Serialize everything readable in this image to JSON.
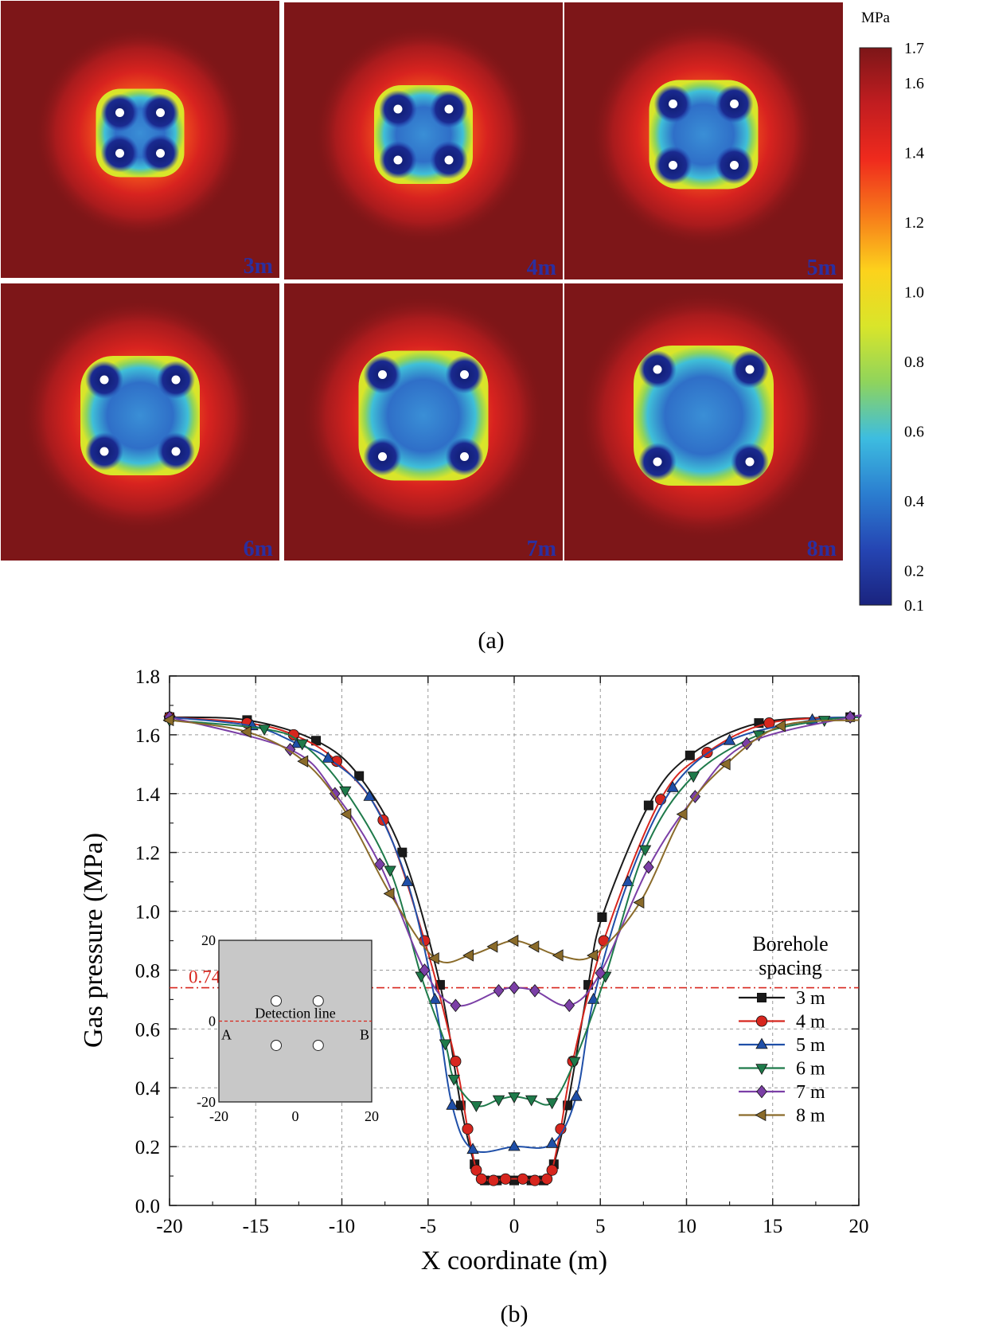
{
  "panel_a": {
    "label": "(a)",
    "colorbar": {
      "unit": "MPa",
      "ticks": [
        "1.7",
        "1.6",
        "1.4",
        "1.2",
        "1.0",
        "0.8",
        "0.6",
        "0.4",
        "0.2",
        "0.1"
      ],
      "stops": [
        "#7d1618",
        "#c11d20",
        "#ef2a1d",
        "#f77a1a",
        "#fcd21c",
        "#d9e52a",
        "#8fd45c",
        "#3dbde0",
        "#2b7ed0",
        "#2545b3",
        "#1a237e"
      ]
    },
    "maps": [
      {
        "label": "3m",
        "spacing": 3
      },
      {
        "label": "4m",
        "spacing": 4
      },
      {
        "label": "5m",
        "spacing": 5
      },
      {
        "label": "6m",
        "spacing": 6
      },
      {
        "label": "7m",
        "spacing": 7
      },
      {
        "label": "8m",
        "spacing": 8
      }
    ]
  },
  "panel_b": {
    "label": "(b)",
    "chart_data": {
      "type": "line",
      "xlabel": "X coordinate (m)",
      "ylabel": "Gas pressure (MPa)",
      "xlim": [
        -20,
        20
      ],
      "ylim": [
        0.0,
        1.8
      ],
      "x_ticks": [
        "-20",
        "-15",
        "-10",
        "-5",
        "0",
        "5",
        "10",
        "15",
        "20"
      ],
      "y_ticks": [
        "0.0",
        "0.2",
        "0.4",
        "0.6",
        "0.8",
        "1.0",
        "1.2",
        "1.4",
        "1.6",
        "1.8"
      ],
      "grid": true,
      "threshold": {
        "value": 0.74,
        "label": "0.74MPa",
        "color": "#d7261e"
      },
      "legend": {
        "title_line1": "Borehole",
        "title_line2": "spacing",
        "position": "right"
      },
      "series": [
        {
          "name": "3 m",
          "marker": "square",
          "color": "#1a1a1a",
          "points": [
            [
              -20,
              1.66
            ],
            [
              -15.5,
              1.65
            ],
            [
              -11.5,
              1.58
            ],
            [
              -9,
              1.46
            ],
            [
              -6.5,
              1.2
            ],
            [
              -4.3,
              0.75
            ],
            [
              -3.1,
              0.34
            ],
            [
              -2.3,
              0.14
            ],
            [
              -1.7,
              0.085
            ],
            [
              -1,
              0.085
            ],
            [
              0,
              0.085
            ],
            [
              1,
              0.085
            ],
            [
              1.7,
              0.085
            ],
            [
              2.3,
              0.14
            ],
            [
              3.1,
              0.34
            ],
            [
              4.3,
              0.75
            ],
            [
              5.1,
              0.98
            ],
            [
              7.8,
              1.36
            ],
            [
              10.2,
              1.53
            ],
            [
              14.2,
              1.64
            ],
            [
              19.5,
              1.66
            ],
            [
              20,
              1.66
            ]
          ]
        },
        {
          "name": "4 m",
          "marker": "circle",
          "color": "#d7261e",
          "points": [
            [
              -20,
              1.66
            ],
            [
              -15.5,
              1.64
            ],
            [
              -12.8,
              1.6
            ],
            [
              -10.3,
              1.51
            ],
            [
              -7.6,
              1.31
            ],
            [
              -5.2,
              0.9
            ],
            [
              -3.4,
              0.49
            ],
            [
              -2.7,
              0.26
            ],
            [
              -2.2,
              0.12
            ],
            [
              -1.9,
              0.09
            ],
            [
              -1.2,
              0.085
            ],
            [
              -0.5,
              0.09
            ],
            [
              0.5,
              0.09
            ],
            [
              1.2,
              0.085
            ],
            [
              1.9,
              0.09
            ],
            [
              2.2,
              0.12
            ],
            [
              2.7,
              0.26
            ],
            [
              3.4,
              0.49
            ],
            [
              5.2,
              0.9
            ],
            [
              8.5,
              1.38
            ],
            [
              11.2,
              1.54
            ],
            [
              14.8,
              1.64
            ],
            [
              20,
              1.66
            ]
          ]
        },
        {
          "name": "5 m",
          "marker": "triangle-up",
          "color": "#1f4fa8",
          "points": [
            [
              -20,
              1.66
            ],
            [
              -15.2,
              1.63
            ],
            [
              -12.6,
              1.57
            ],
            [
              -10.8,
              1.52
            ],
            [
              -8.4,
              1.39
            ],
            [
              -6.2,
              1.1
            ],
            [
              -4.6,
              0.7
            ],
            [
              -3.6,
              0.34
            ],
            [
              -2.4,
              0.19
            ],
            [
              0,
              0.2
            ],
            [
              2.2,
              0.21
            ],
            [
              3.6,
              0.37
            ],
            [
              4.6,
              0.7
            ],
            [
              6.6,
              1.1
            ],
            [
              9.2,
              1.42
            ],
            [
              12.5,
              1.58
            ],
            [
              17.3,
              1.65
            ],
            [
              20,
              1.66
            ]
          ]
        },
        {
          "name": "6 m",
          "marker": "triangle-down",
          "color": "#1e7a4a",
          "points": [
            [
              -20,
              1.65
            ],
            [
              -14.5,
              1.62
            ],
            [
              -12.3,
              1.57
            ],
            [
              -9.8,
              1.41
            ],
            [
              -7.2,
              1.14
            ],
            [
              -5.4,
              0.78
            ],
            [
              -4,
              0.55
            ],
            [
              -3.5,
              0.43
            ],
            [
              -2.2,
              0.34
            ],
            [
              -0.9,
              0.36
            ],
            [
              0,
              0.37
            ],
            [
              1,
              0.36
            ],
            [
              2.2,
              0.35
            ],
            [
              3.5,
              0.49
            ],
            [
              5.3,
              0.78
            ],
            [
              7.6,
              1.21
            ],
            [
              10.4,
              1.46
            ],
            [
              14.2,
              1.6
            ],
            [
              18,
              1.65
            ],
            [
              20,
              1.66
            ]
          ]
        },
        {
          "name": "7 m",
          "marker": "diamond",
          "color": "#7b3fa6",
          "points": [
            [
              -20,
              1.66
            ],
            [
              -13,
              1.55
            ],
            [
              -10.4,
              1.4
            ],
            [
              -7.8,
              1.16
            ],
            [
              -5.2,
              0.8
            ],
            [
              -3.4,
              0.68
            ],
            [
              -0.9,
              0.73
            ],
            [
              0,
              0.74
            ],
            [
              1.2,
              0.73
            ],
            [
              3.2,
              0.68
            ],
            [
              5,
              0.79
            ],
            [
              7.8,
              1.15
            ],
            [
              10.5,
              1.39
            ],
            [
              13.5,
              1.57
            ],
            [
              19.5,
              1.66
            ],
            [
              20,
              1.66
            ]
          ]
        },
        {
          "name": "8 m",
          "marker": "triangle-left",
          "color": "#8a6b2a",
          "points": [
            [
              -20,
              1.65
            ],
            [
              -15.5,
              1.61
            ],
            [
              -12.2,
              1.51
            ],
            [
              -9.7,
              1.33
            ],
            [
              -7.2,
              1.06
            ],
            [
              -4.6,
              0.84
            ],
            [
              -2.6,
              0.85
            ],
            [
              -1.2,
              0.88
            ],
            [
              0,
              0.9
            ],
            [
              1.2,
              0.88
            ],
            [
              2.6,
              0.85
            ],
            [
              4.6,
              0.85
            ],
            [
              7.3,
              1.03
            ],
            [
              9.8,
              1.33
            ],
            [
              12.3,
              1.5
            ],
            [
              15.5,
              1.63
            ],
            [
              20,
              1.65
            ]
          ]
        }
      ]
    },
    "inset": {
      "title": "Detection line",
      "label_a": "A",
      "label_b": "B",
      "x_ticks": [
        "-20",
        "0",
        "20"
      ],
      "y_ticks": [
        "20",
        "0",
        "-20"
      ]
    }
  }
}
